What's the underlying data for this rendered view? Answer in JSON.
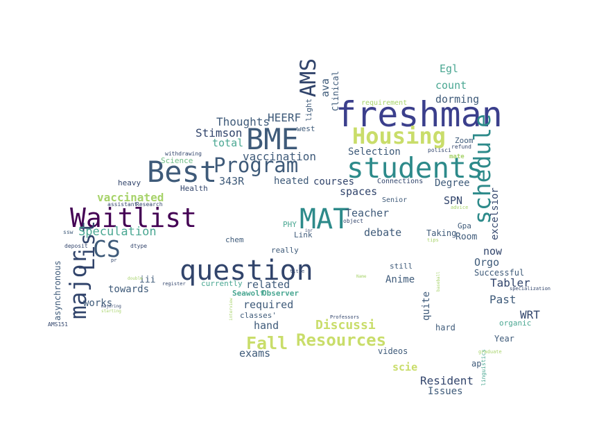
{
  "wordcloud": {
    "background": "#ffffff",
    "palette": {
      "dark_purple": "#440154",
      "indigo": "#3b3f8c",
      "navy": "#31446b",
      "slate": "#3e5a79",
      "steel": "#4a6d88",
      "teal": "#2d8a8a",
      "sea": "#4aa792",
      "green": "#6ebd86",
      "lime": "#a7d36a",
      "yellow": "#c9dd6a",
      "gray": "#666666"
    },
    "words": [
      "freshman",
      "students",
      "Housing",
      "schedule",
      "BME",
      "Best",
      "Program",
      "AMS",
      "Waitlist",
      "question",
      "MAT",
      "major",
      "List",
      "CS",
      "Resources",
      "Fall",
      "Discussi",
      "vaccinated",
      "Speculation",
      "HEERF",
      "Thoughts",
      "Stimson",
      "total",
      "vaccination",
      "343R",
      "heated",
      "courses",
      "spaces",
      "Teacher",
      "debate",
      "Selection",
      "Degree",
      "SPN",
      "excelsior",
      "Room",
      "Taking",
      "Gpa",
      "Egl",
      "count",
      "dorming",
      "Zoom",
      "ava",
      "light",
      "Clinical",
      "requirement",
      "west",
      "now",
      "Orgo",
      "Successful",
      "Tabler",
      "Past",
      "WRT",
      "organic",
      "Year",
      "ap",
      "linguistics",
      "Resident",
      "Issues",
      "hard",
      "scie",
      "videos",
      "quite",
      "still",
      "Anime",
      "related",
      "required",
      "hand",
      "exams",
      "classes'",
      "Seawolf",
      "Observer",
      "currently",
      "towards",
      "works",
      "iii",
      "asynchronous",
      "AMS151",
      "deposit",
      "dtype",
      "ssw",
      "chem",
      "really",
      "Link",
      "PHY",
      "Health",
      "heavy",
      "Science",
      "withdrawing",
      "assistant",
      "Research",
      "Connections",
      "Senior",
      "object",
      "polisci",
      "refund",
      "mate",
      "advice",
      "tips",
      "specialization",
      "graduate",
      "Professors",
      "interview",
      "title",
      "register",
      "double",
      "majoring",
      "starting",
      "pr",
      "inr",
      "Name",
      "baseball"
    ]
  }
}
